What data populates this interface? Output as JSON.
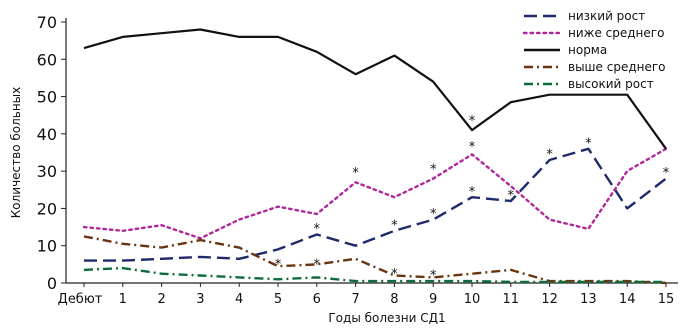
{
  "chart_data": {
    "type": "line",
    "xlabel": "Годы болезни СД1",
    "ylabel": "Количество больных",
    "categories": [
      "Дебют",
      "1",
      "2",
      "3",
      "4",
      "5",
      "6",
      "7",
      "8",
      "9",
      "10",
      "11",
      "12",
      "13",
      "14",
      "15"
    ],
    "ylim": [
      0,
      70
    ],
    "yticks": [
      "0",
      "10",
      "20",
      "30",
      "40",
      "50",
      "60",
      "70"
    ],
    "grid": false,
    "legend_position": "top-right",
    "series": [
      {
        "name": "низкий рост",
        "color": "#1f2a6b",
        "dash": "long-dash",
        "values": [
          6,
          6,
          6.5,
          7,
          6.5,
          9,
          13,
          10,
          14,
          17,
          23,
          22,
          33,
          36,
          20,
          28
        ]
      },
      {
        "name": "ниже среднего",
        "color": "#b0279a",
        "dash": "dotted",
        "values": [
          15,
          14,
          15.5,
          12,
          17,
          20.5,
          18.5,
          27,
          23,
          28,
          34.5,
          26,
          17,
          14.5,
          30,
          36
        ]
      },
      {
        "name": "норма",
        "color": "#111111",
        "dash": "solid",
        "values": [
          63,
          66,
          67,
          68,
          66,
          66,
          62,
          56,
          61,
          54,
          41,
          48.5,
          50.5,
          50.5,
          50.5,
          36
        ]
      },
      {
        "name": "выше среднего",
        "color": "#6b3410",
        "dash": "dash-dot",
        "values": [
          12.5,
          10.5,
          9.5,
          11.5,
          9.5,
          4.5,
          5,
          6.5,
          2,
          1.5,
          2.5,
          3.5,
          0.5,
          0.5,
          0.5,
          0
        ]
      },
      {
        "name": "высокий рост",
        "color": "#0d6b3c",
        "dash": "dash-dot",
        "values": [
          3.5,
          4,
          2.5,
          2,
          1.5,
          1,
          1.5,
          0.5,
          0.5,
          0.5,
          0.5,
          0.3,
          0.3,
          0.3,
          0.3,
          0.3
        ]
      }
    ],
    "annotations": [
      {
        "text": "*",
        "x": "5",
        "y": 5.5
      },
      {
        "text": "*",
        "x": "6",
        "y": 5.5
      },
      {
        "text": "*",
        "x": "6",
        "y": 15
      },
      {
        "text": "*",
        "x": "7",
        "y": 30
      },
      {
        "text": "*",
        "x": "8",
        "y": 16
      },
      {
        "text": "*",
        "x": "8",
        "y": 3
      },
      {
        "text": "*",
        "x": "9",
        "y": 19
      },
      {
        "text": "*",
        "x": "9",
        "y": 31
      },
      {
        "text": "*",
        "x": "9",
        "y": 2.5
      },
      {
        "text": "*",
        "x": "10",
        "y": 25
      },
      {
        "text": "*",
        "x": "10",
        "y": 37
      },
      {
        "text": "*",
        "x": "10",
        "y": 44
      },
      {
        "text": "*",
        "x": "11",
        "y": 24
      },
      {
        "text": "*",
        "x": "12",
        "y": 35
      },
      {
        "text": "*",
        "x": "13",
        "y": 38
      },
      {
        "text": "*",
        "x": "15",
        "y": 30
      }
    ]
  }
}
